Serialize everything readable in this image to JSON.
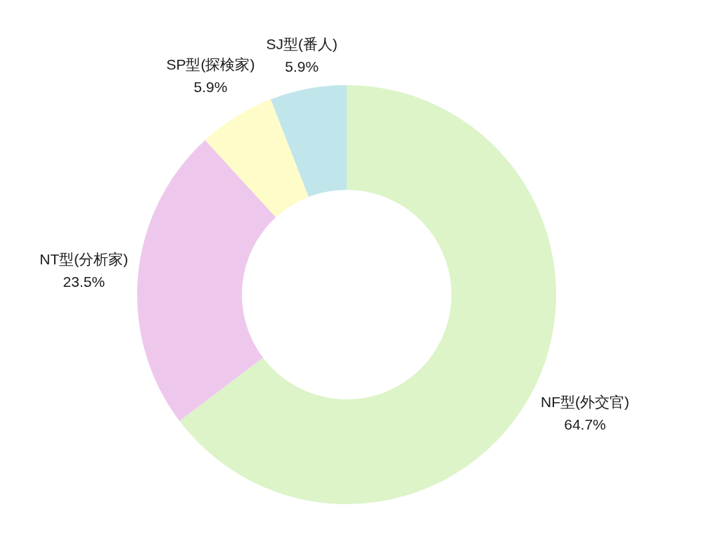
{
  "chart_data": {
    "type": "donut",
    "categories": [
      "NF型(外交官)",
      "NT型(分析家)",
      "SP型(探検家)",
      "SJ型(番人)"
    ],
    "values": [
      64.7,
      23.5,
      5.9,
      5.9
    ],
    "colors": [
      "#dcf4c8",
      "#eec8ec",
      "#fefcc8",
      "#c0e6ec"
    ],
    "value_labels": [
      "64.7%",
      "23.5%",
      "5.9%",
      "5.9%"
    ]
  }
}
